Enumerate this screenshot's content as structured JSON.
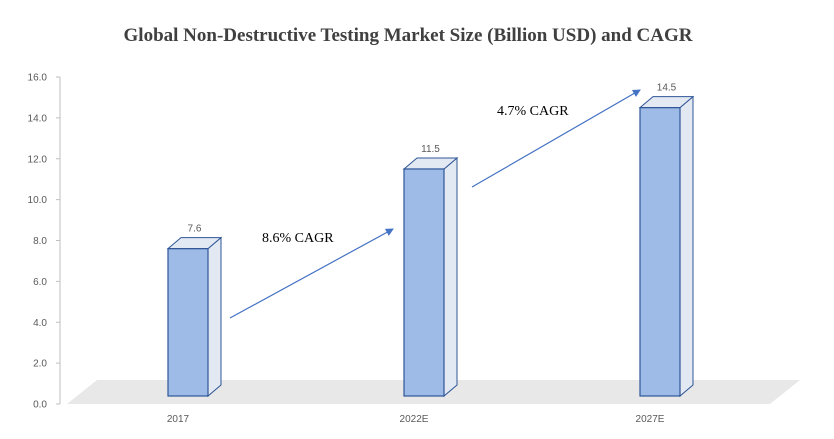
{
  "chart_data": {
    "type": "bar",
    "title": "Global Non-Destructive Testing Market Size (Billion USD) and CAGR",
    "categories": [
      "2017",
      "2022E",
      "2027E"
    ],
    "values": [
      7.6,
      11.5,
      14.5
    ],
    "data_labels": [
      "7.6",
      "11.5",
      "14.5"
    ],
    "ylim": [
      0,
      16
    ],
    "y_ticks": [
      "0.0",
      "2.0",
      "4.0",
      "6.0",
      "8.0",
      "10.0",
      "12.0",
      "14.0",
      "16.0"
    ],
    "xlabel": "",
    "ylabel": "",
    "grid": false,
    "style": "3d-column",
    "annotations": [
      {
        "text": "8.6% CAGR",
        "from": 0,
        "to": 1
      },
      {
        "text": "4.7% CAGR",
        "from": 1,
        "to": 2
      }
    ],
    "colors": {
      "bar_front": "#9dbbe6",
      "bar_side": "#e3e9f2",
      "bar_edge": "#2f5597",
      "floor": "#e8e8e8",
      "arrow": "#4472c4",
      "axis": "#bfbfbf"
    }
  }
}
